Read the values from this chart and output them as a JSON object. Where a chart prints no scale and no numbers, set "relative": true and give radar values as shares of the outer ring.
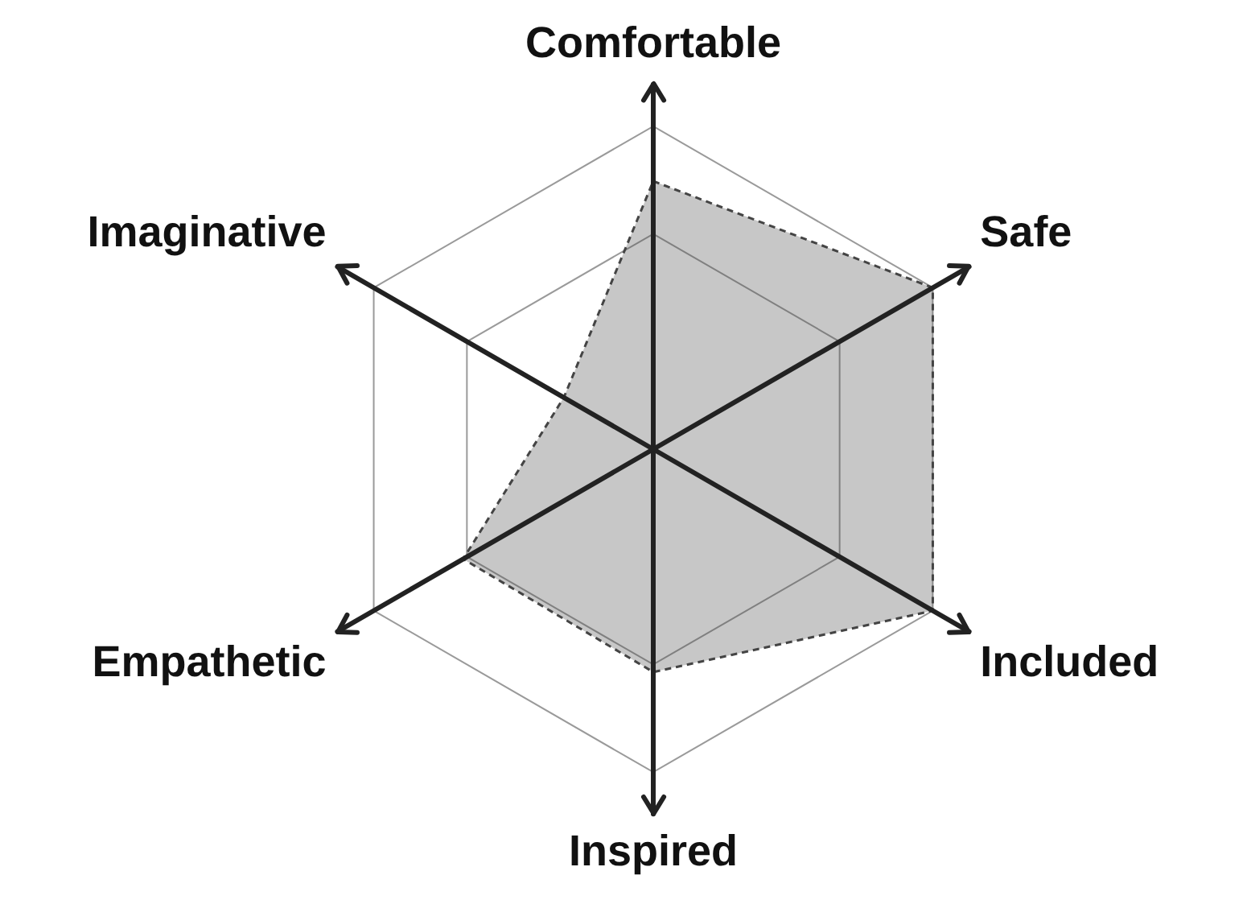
{
  "chart_data": {
    "type": "radar",
    "relative": true,
    "categories": [
      "Comfortable",
      "Safe",
      "Included",
      "Inspired",
      "Empathetic",
      "Imaginative"
    ],
    "series": [
      {
        "color": "#444444",
        "values": [
          0.83,
          1,
          1,
          0.69,
          0.68,
          0.32
        ]
      }
    ],
    "grid": true,
    "legend": false,
    "marker": "none",
    "line_style": "dashed"
  }
}
